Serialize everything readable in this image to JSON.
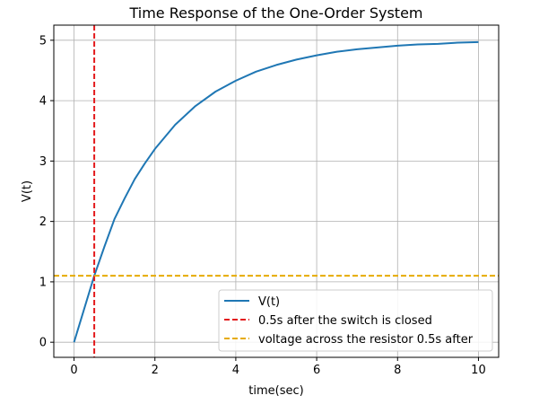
{
  "chart_data": {
    "type": "line",
    "title": "Time Response of the One-Order System",
    "xlabel": "time(sec)",
    "ylabel": "V(t)",
    "xlim": [
      -0.5,
      10.5
    ],
    "ylim": [
      -0.25,
      5.25
    ],
    "xticks": [
      0,
      2,
      4,
      6,
      8,
      10
    ],
    "xtick_labels": [
      "0",
      "2",
      "4",
      "6",
      "8",
      "10"
    ],
    "yticks": [
      0,
      1,
      2,
      3,
      4,
      5
    ],
    "ytick_labels": [
      "0",
      "1",
      "2",
      "3",
      "4",
      "5"
    ],
    "grid": true,
    "legend_position": "bottom-right",
    "series": [
      {
        "name": "V(t)",
        "color": "#1f77b4",
        "style": "solid",
        "x": [
          0,
          0.25,
          0.5,
          0.75,
          1,
          1.25,
          1.5,
          1.75,
          2,
          2.5,
          3,
          3.5,
          4,
          4.5,
          5,
          5.5,
          6,
          6.5,
          7,
          7.5,
          8,
          8.5,
          9,
          9.5,
          10
        ],
        "y": [
          0,
          0.55,
          1.1,
          1.58,
          2.04,
          2.38,
          2.7,
          2.96,
          3.2,
          3.6,
          3.91,
          4.15,
          4.33,
          4.48,
          4.59,
          4.68,
          4.75,
          4.81,
          4.85,
          4.88,
          4.91,
          4.93,
          4.94,
          4.96,
          4.97
        ]
      },
      {
        "name": "0.5s after the switch is closed",
        "color": "#e31a1c",
        "style": "dashed",
        "orientation": "vertical",
        "x_value": 0.5
      },
      {
        "name": "voltage across the resistor 0.5s after",
        "color": "#e6ab02",
        "style": "dashed",
        "orientation": "horizontal",
        "y_value": 1.1
      }
    ]
  }
}
